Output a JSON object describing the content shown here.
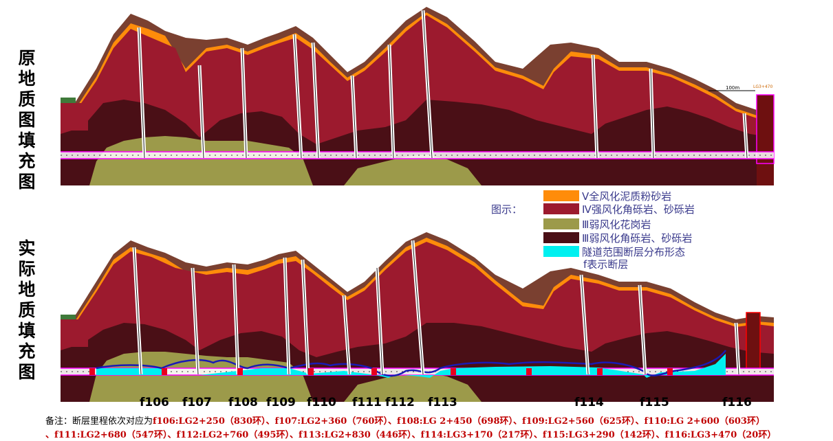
{
  "labels": {
    "top": [
      "原",
      "地",
      "质",
      "图",
      "填",
      "充",
      "图"
    ],
    "bottom": [
      "实",
      "际",
      "地",
      "质",
      "填",
      "充",
      "图"
    ]
  },
  "legend": {
    "heading": "图示：",
    "items": [
      {
        "text": "Ⅴ全风化泥质粉砂岩",
        "color": "#ff8c0a"
      },
      {
        "text": "Ⅳ强风化角砾岩、砂砾岩",
        "color": "#9c1a2e"
      },
      {
        "text": "Ⅲ弱风化花岗岩",
        "color": "#9c9a4a"
      },
      {
        "text": "Ⅲ弱风化角砾岩、砂砾岩",
        "color": "#4a0f16"
      },
      {
        "text": "隧道范围断层分布形态",
        "color": "#00f0f0"
      }
    ],
    "note": "f表示断层"
  },
  "scale": {
    "text": "100m",
    "mark_text": "LG3+470"
  },
  "faults": [
    "f106",
    "f107",
    "f108",
    "f109",
    "f110",
    "f111",
    "f112",
    "f113",
    "f114",
    "f115",
    "f116"
  ],
  "note": {
    "prefix": "备注：断层里程依次对应为",
    "line1": "f106:LG2+250（830环）、f107:LG2+360（760环）、f108:LG 2+450（698环）、f109:LG2+560（625环）、f110:LG 2+600（603环）",
    "line2": "、f111:LG2+680（547环）、f112:LG2+760（495环）、f113:LG2+830（446环）、f114:LG3+170（217环）、f115:LG3+290（142环）、f116:LG3+470（20环）"
  },
  "colors": {
    "terrain": "#7a4030",
    "full_weathered": "#ff8c0a",
    "strong_weathered": "#9c1a2e",
    "weak_granite": "#9c9a4a",
    "weak_breccia": "#4a0f16",
    "fault_zone": "#00f0f0",
    "tunnel_line": "#ff00ff",
    "fault_outline": "#1a1ab4"
  }
}
